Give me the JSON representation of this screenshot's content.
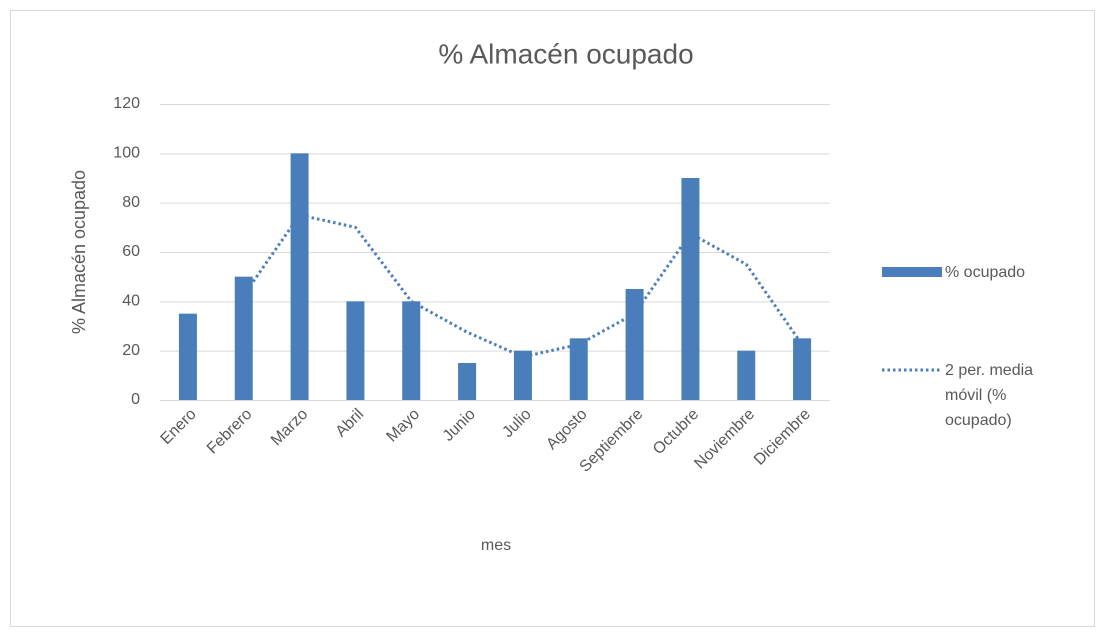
{
  "chart_data": {
    "type": "bar",
    "title": "% Almacén ocupado",
    "x_label": "mes",
    "y_label": "% Almacén ocupado",
    "categories": [
      "Enero",
      "Febrero",
      "Marzo",
      "Abril",
      "Mayo",
      "Junio",
      "Julio",
      "Agosto",
      "Septiembre",
      "Octubre",
      "Noviembre",
      "Diciembre"
    ],
    "series": [
      {
        "name": "% ocupado",
        "color": "#4a7ebb",
        "values": [
          35,
          50,
          100,
          40,
          40,
          15,
          20,
          25,
          45,
          90,
          20,
          25
        ]
      },
      {
        "name": "2 per. media móvil (% ocupado)",
        "type": "line",
        "dash": "dotted",
        "color": "#4a7ebb",
        "values": [
          null,
          42.5,
          75,
          70,
          40,
          27.5,
          17.5,
          22.5,
          35,
          67.5,
          55,
          22.5
        ]
      }
    ],
    "ylim": [
      0,
      120
    ],
    "yticks": [
      0,
      20,
      40,
      60,
      80,
      100,
      120
    ],
    "grid": true,
    "legend": "right"
  }
}
